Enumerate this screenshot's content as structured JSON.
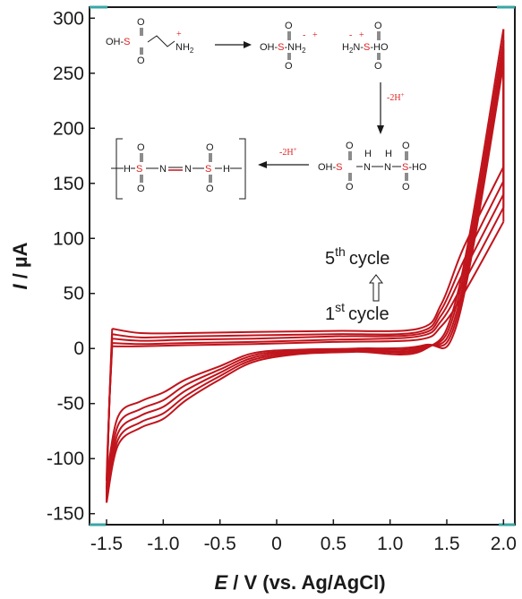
{
  "chart_data": {
    "type": "line",
    "title": "",
    "xlabel": "E / V (vs. Ag/AgCl)",
    "xlabel_var": "E",
    "xlabel_rest": " / V (vs. Ag/AgCl)",
    "ylabel": "I / µA",
    "ylabel_var": "I",
    "ylabel_rest": " / µA",
    "xlim": [
      -1.65,
      2.1
    ],
    "ylim": [
      -160,
      310
    ],
    "xticks": [
      -1.5,
      -1.0,
      -0.5,
      0,
      0.5,
      1.0,
      1.5,
      2.0
    ],
    "xtick_labels": [
      "-1.5",
      "-1.0",
      "-0.5",
      "0",
      "0.5",
      "1.0",
      "1.5",
      "2.0"
    ],
    "yticks": [
      -150,
      -100,
      -50,
      0,
      50,
      100,
      150,
      200,
      250,
      300
    ],
    "ytick_labels": [
      "-150",
      "-100",
      "-50",
      "0",
      "50",
      "100",
      "150",
      "200",
      "250",
      "300"
    ],
    "grid": false,
    "series_color": "#c0141c",
    "cycles": 5,
    "series": [
      {
        "cycle": 1,
        "lower_y": [
          -120,
          -62,
          -48,
          -40,
          -28,
          -16,
          -4,
          -1,
          0,
          3,
          26,
          258
        ],
        "upper_y": [
          2,
          2,
          3,
          4,
          6,
          8,
          20,
          50,
          115
        ]
      },
      {
        "cycle": 2,
        "lower_y": [
          -128,
          -70,
          -55,
          -47,
          -33,
          -19,
          -6,
          -2,
          -1,
          2,
          32,
          265
        ],
        "upper_y": [
          5,
          4,
          5,
          6,
          8,
          11,
          25,
          60,
          128
        ]
      },
      {
        "cycle": 3,
        "lower_y": [
          -134,
          -77,
          -61,
          -53,
          -38,
          -22,
          -8,
          -3,
          -2,
          1,
          38,
          272
        ],
        "upper_y": [
          9,
          7,
          8,
          9,
          11,
          13,
          30,
          70,
          140
        ]
      },
      {
        "cycle": 4,
        "lower_y": [
          -138,
          -83,
          -67,
          -59,
          -43,
          -25,
          -10,
          -4,
          -2,
          0,
          45,
          280
        ],
        "upper_y": [
          13,
          10,
          11,
          12,
          13,
          15,
          35,
          80,
          152
        ]
      },
      {
        "cycle": 5,
        "lower_y": [
          -140,
          -88,
          -72,
          -64,
          -47,
          -28,
          -12,
          -5,
          -3,
          -1,
          52,
          290
        ],
        "upper_y": [
          18,
          14,
          14,
          15,
          16,
          18,
          40,
          92,
          165
        ]
      }
    ],
    "x_lower": [
      -1.5,
      -1.4,
      -1.2,
      -1.0,
      -0.8,
      -0.5,
      -0.2,
      0.2,
      0.7,
      1.3,
      1.6,
      2.0
    ],
    "x_upper": [
      -1.45,
      -1.2,
      -0.8,
      -0.2,
      0.5,
      1.25,
      1.45,
      1.65,
      2.0
    ],
    "annotations": {
      "cycle_top_num": "5",
      "cycle_top_sup": "th",
      "cycle_top_word": "cycle",
      "cycle_bot_num": "1",
      "cycle_bot_sup": "st",
      "cycle_bot_word": "cycle"
    },
    "scheme": {
      "r1_left_pre": "OH-",
      "r1_left_s": "S",
      "r1_nh": "NH",
      "r1_sub2": "2",
      "r1_mid_pre": "OH-",
      "r1_mid_s": "S",
      "r1_mid_post": "-NH",
      "r1_mid_sub2": "2",
      "r1_right_h": "H",
      "r1_right_sub2": "2",
      "r1_right_n": "N-",
      "r1_right_s": "S",
      "r1_right_post": "-HO",
      "plus": "+",
      "minus": "-",
      "o": "O",
      "h": "H",
      "step1": "-2H",
      "step2": "-2H",
      "step_sup": "+",
      "r2_pre": "OH-",
      "r2_s": "S",
      "r2_n": "N",
      "r2_post": "-HO",
      "poly_h": "H",
      "poly_s": "S",
      "poly_n": "N"
    }
  }
}
